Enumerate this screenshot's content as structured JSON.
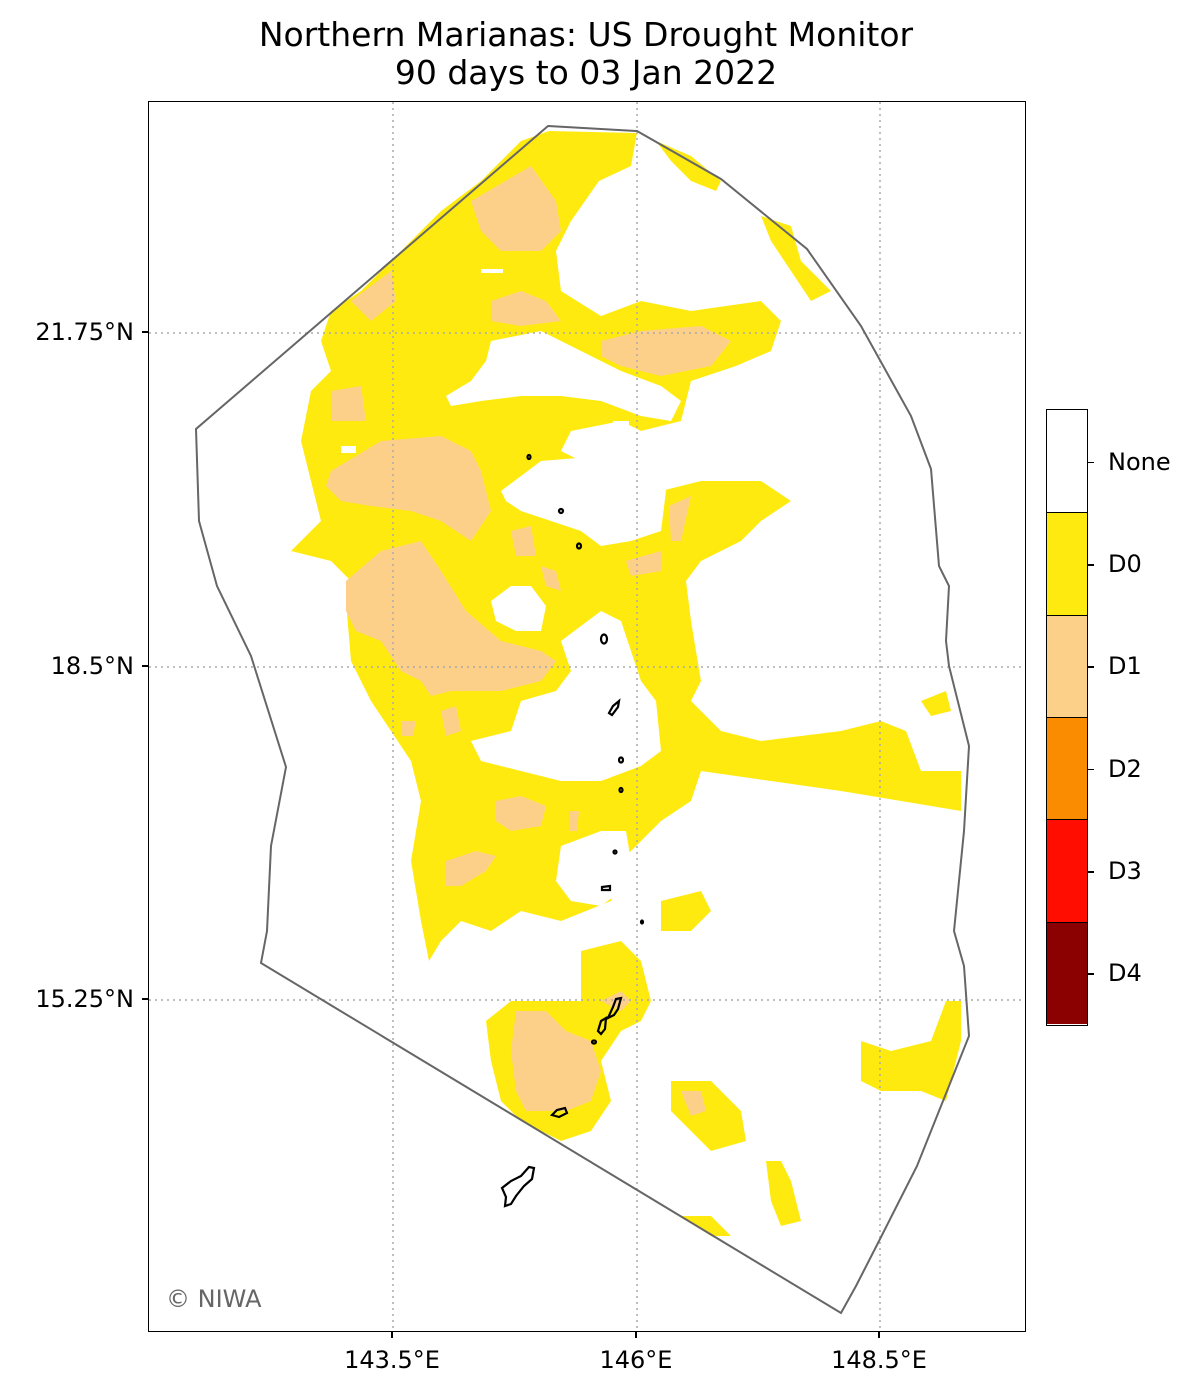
{
  "title": {
    "line1": "Northern Marianas: US Drought Monitor",
    "line2": "90 days to 03 Jan 2022"
  },
  "axes": {
    "lat_labels": [
      "21.75°N",
      "18.5°N",
      "15.25°N"
    ],
    "lon_labels": [
      "143.5°E",
      "146°E",
      "148.5°E"
    ],
    "gridlines": "dotted"
  },
  "credit": "© NIWA",
  "legend": {
    "categories": [
      {
        "label": "None",
        "color": "#ffffff"
      },
      {
        "label": "D0",
        "color": "#ffea10"
      },
      {
        "label": "D1",
        "color": "#fdd08a"
      },
      {
        "label": "D2",
        "color": "#f98c00"
      },
      {
        "label": "D3",
        "color": "#fe0d00"
      },
      {
        "label": "D4",
        "color": "#8b0000"
      }
    ]
  },
  "colors": {
    "boundary": "#666666",
    "grid": "#aaaaaa",
    "islands": "#000000"
  }
}
